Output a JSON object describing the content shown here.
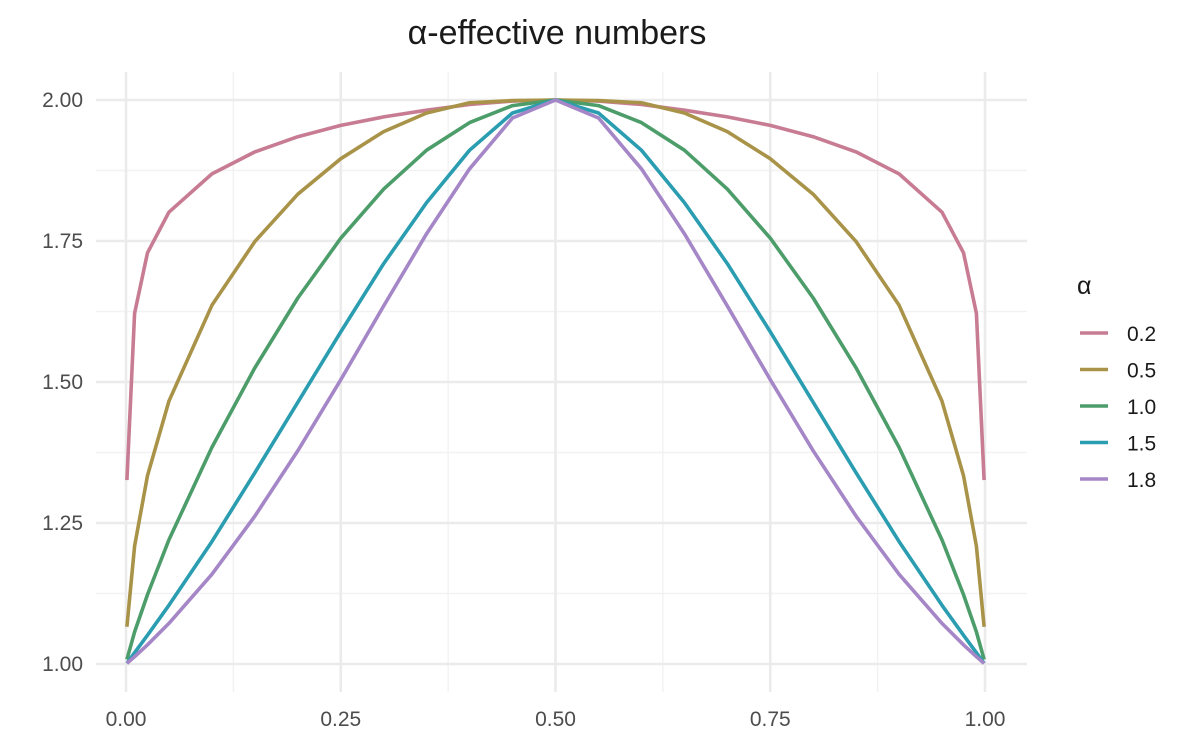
{
  "chart_data": {
    "type": "line",
    "title": "α-effective numbers",
    "xlabel": "",
    "ylabel": "",
    "xlim": [
      0,
      1
    ],
    "ylim": [
      1,
      2
    ],
    "x_ticks": [
      "0.00",
      "0.25",
      "0.50",
      "0.75",
      "1.00"
    ],
    "y_ticks": [
      "1.00",
      "1.25",
      "1.50",
      "1.75",
      "2.00"
    ],
    "grid": true,
    "legend": {
      "title": "α",
      "placement": "right"
    },
    "x": [
      0.001,
      0.01,
      0.025,
      0.05,
      0.1,
      0.15,
      0.2,
      0.25,
      0.3,
      0.35,
      0.4,
      0.45,
      0.5,
      0.55,
      0.6,
      0.65,
      0.7,
      0.75,
      0.8,
      0.85,
      0.9,
      0.95,
      0.975,
      0.99,
      0.999
    ],
    "series": [
      {
        "name": "0.2",
        "color": "#C77C93",
        "values": [
          1.326,
          1.622,
          1.729,
          1.801,
          1.869,
          1.908,
          1.935,
          1.955,
          1.97,
          1.982,
          1.992,
          1.998,
          2.0,
          1.998,
          1.992,
          1.982,
          1.97,
          1.955,
          1.935,
          1.908,
          1.869,
          1.801,
          1.729,
          1.622,
          1.326
        ]
      },
      {
        "name": "0.5",
        "color": "#A99349",
        "values": [
          1.066,
          1.209,
          1.334,
          1.466,
          1.636,
          1.749,
          1.833,
          1.896,
          1.944,
          1.977,
          1.995,
          1.999,
          2.0,
          1.999,
          1.995,
          1.977,
          1.944,
          1.896,
          1.833,
          1.749,
          1.636,
          1.466,
          1.334,
          1.209,
          1.066
        ]
      },
      {
        "name": "1.0",
        "color": "#4D9D6B",
        "values": [
          1.008,
          1.057,
          1.123,
          1.22,
          1.384,
          1.525,
          1.649,
          1.755,
          1.842,
          1.911,
          1.96,
          1.99,
          2.0,
          1.99,
          1.96,
          1.911,
          1.842,
          1.755,
          1.649,
          1.525,
          1.384,
          1.22,
          1.123,
          1.057,
          1.008
        ]
      },
      {
        "name": "1.5",
        "color": "#2B9DB1",
        "values": [
          1.001,
          1.02,
          1.051,
          1.104,
          1.217,
          1.339,
          1.464,
          1.589,
          1.71,
          1.818,
          1.911,
          1.977,
          2.0,
          1.977,
          1.911,
          1.818,
          1.71,
          1.589,
          1.464,
          1.339,
          1.217,
          1.104,
          1.051,
          1.02,
          1.001
        ]
      },
      {
        "name": "1.8",
        "color": "#A586C7",
        "values": [
          1.001,
          1.013,
          1.034,
          1.072,
          1.159,
          1.262,
          1.378,
          1.504,
          1.635,
          1.763,
          1.878,
          1.968,
          2.0,
          1.968,
          1.878,
          1.763,
          1.635,
          1.504,
          1.378,
          1.262,
          1.159,
          1.072,
          1.034,
          1.013,
          1.001
        ]
      }
    ]
  }
}
